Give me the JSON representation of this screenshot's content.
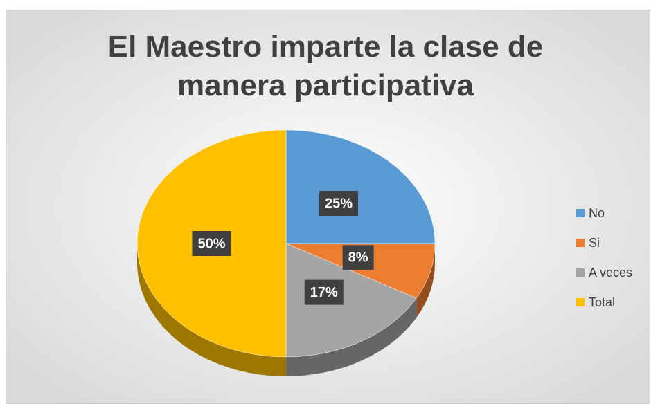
{
  "chart_data": {
    "type": "pie",
    "title": "El Maestro imparte la clase de manera participativa",
    "categories": [
      "No",
      "Si",
      "A veces",
      "Total"
    ],
    "values": [
      25,
      8,
      17,
      50
    ],
    "value_labels": [
      "25%",
      "8%",
      "17%",
      "50%"
    ],
    "colors": [
      "#5b9bd5",
      "#ed7d31",
      "#a5a5a5",
      "#ffc000"
    ],
    "legend": "right",
    "3d": true
  }
}
